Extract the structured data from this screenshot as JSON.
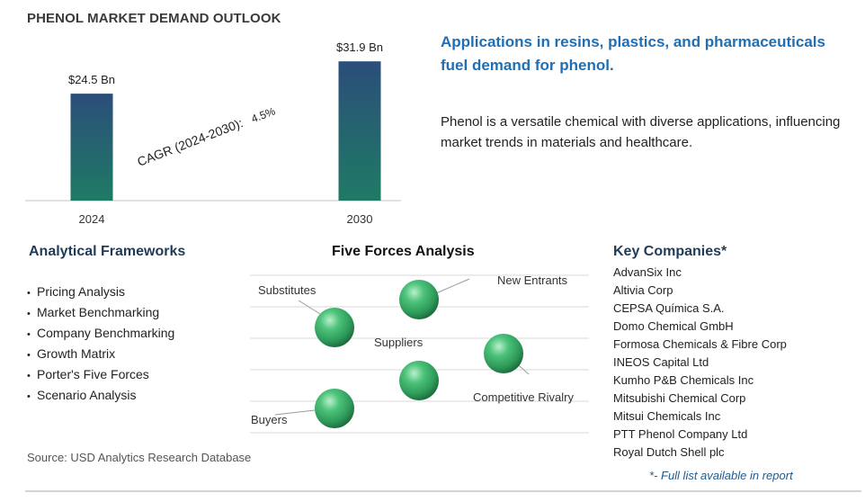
{
  "title": "PHENOL MARKET DEMAND OUTLOOK",
  "chart_data": {
    "type": "bar",
    "categories": [
      "2024",
      "2030"
    ],
    "values": [
      24.5,
      31.9
    ],
    "data_labels": [
      "$24.5 Bn",
      "$31.9 Bn"
    ],
    "cagr_label": "CAGR (2024-2030):",
    "cagr_value": "4.5%",
    "ylim": [
      0,
      34
    ],
    "grid": false,
    "bar_gradient": [
      "#2b4e7a",
      "#1f7a65"
    ]
  },
  "headline": "Applications in resins, plastics, and pharmaceuticals fuel demand for phenol.",
  "description": "Phenol is a versatile chemical with diverse applications, influencing market trends in materials and healthcare.",
  "frameworks": {
    "heading": "Analytical Frameworks",
    "items": [
      "Pricing Analysis",
      "Market Benchmarking",
      "Company Benchmarking",
      "Growth Matrix",
      "Porter's Five Forces",
      "Scenario Analysis"
    ]
  },
  "five_forces": {
    "heading": "Five Forces Analysis",
    "labels": {
      "substitutes": "Substitutes",
      "new_entrants": "New Entrants",
      "suppliers": "Suppliers",
      "competitive_rivalry": "Competitive Rivalry",
      "buyers": "Buyers"
    },
    "sphere_color": "#2e9a5a"
  },
  "companies": {
    "heading": "Key Companies*",
    "items": [
      "AdvanSix Inc",
      "Altivia Corp",
      "CEPSA Química S.A.",
      "Domo Chemical GmbH",
      "Formosa Chemicals & Fibre Corp",
      "INEOS Capital Ltd",
      "Kumho P&B Chemicals Inc",
      "Mitsubishi Chemical Corp",
      "Mitsui Chemicals Inc",
      "PTT Phenol Company Ltd",
      "Royal Dutch Shell plc"
    ],
    "footnote": "*- Full list available in report"
  },
  "source": "Source: USD Analytics Research Database"
}
